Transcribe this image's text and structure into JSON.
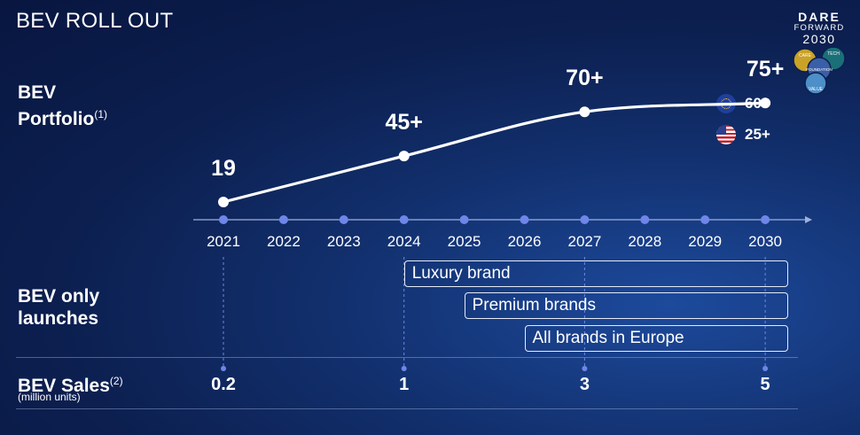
{
  "title": "BEV ROLL OUT",
  "logo": {
    "line1": "DARE",
    "line2": "FORWARD",
    "line3": "2030",
    "badges": [
      "CARE",
      "TECH",
      "FOUNDATION",
      "VALUE"
    ]
  },
  "sections": {
    "portfolio": {
      "line1": "BEV",
      "line2": "Portfolio",
      "footnote": "(1)"
    },
    "launches": {
      "line1": "BEV only",
      "line2": "launches"
    },
    "sales": {
      "label": "BEV Sales",
      "footnote": "(2)",
      "unit": "(million units)"
    }
  },
  "legend": [
    {
      "region": "Europe",
      "icon": "eu-flag-icon",
      "value": "60+"
    },
    {
      "region": "United States",
      "icon": "us-flag-icon",
      "value": "25+"
    }
  ],
  "chart_data": {
    "type": "line",
    "title": "BEV ROLL OUT",
    "x": [
      "2021",
      "2022",
      "2023",
      "2024",
      "2025",
      "2026",
      "2027",
      "2028",
      "2029",
      "2030"
    ],
    "series": [
      {
        "values": [
          19,
          null,
          null,
          45,
          null,
          null,
          70,
          null,
          null,
          75
        ],
        "point_labels": [
          "19",
          "",
          "",
          "45+",
          "",
          "",
          "70+",
          "",
          "",
          "75+"
        ]
      }
    ],
    "launch_bars": [
      {
        "label": "Luxury brand",
        "start": "2024",
        "end": "2030"
      },
      {
        "label": "Premium brands",
        "start": "2025",
        "end": "2030"
      },
      {
        "label": "All brands in Europe",
        "start": "2026",
        "end": "2030"
      }
    ],
    "sales": [
      {
        "year": "2021",
        "label": "0.2",
        "value": 0.2
      },
      {
        "year": "2024",
        "label": "1",
        "value": 1
      },
      {
        "year": "2027",
        "label": "3",
        "value": 3
      },
      {
        "year": "2030",
        "label": "5",
        "value": 5
      }
    ],
    "colors": {
      "accent": "#6f86e8",
      "line": "#ffffff"
    }
  }
}
